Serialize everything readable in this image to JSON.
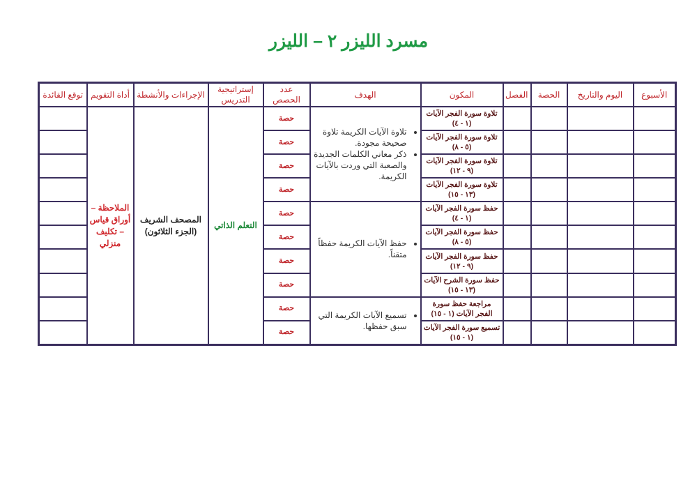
{
  "title": "مسرد الليزر ٢ – الليزر",
  "colors": {
    "title": "#1f9a45",
    "header_text": "#c0282d",
    "border": "#3b2f5e",
    "strategy": "#1f8a3a",
    "assessment": "#d0282d"
  },
  "headers": {
    "week": "الأسبوع",
    "day_date": "اليوم والتاريخ",
    "period": "الحصة",
    "class": "الفصل",
    "component": "المكون",
    "goal": "الهدف",
    "sessions_count": "عدد الحصص",
    "strategy": "إستراتيجية التدريس",
    "procedures": "الإجراءات والأنشطة",
    "assessment": "أداة التقويم",
    "expected_benefit": "توقع القائدة"
  },
  "components": [
    "تلاوة سورة الفجر الآيات (١ - ٤)",
    "تلاوة سورة الفجر الآيات (٥ - ٨)",
    "تلاوة سورة الفجر الآيات (٩ - ١٢)",
    "تلاوة سورة الفجر الآيات (١٣ - ١٥)",
    "حفظ سورة الفجر الآيات (١ - ٤)",
    "حفظ سورة الفجر الآيات (٥ - ٨)",
    "حفظ سورة الفجر الآيات (٩ - ١٢)",
    "حفظ سورة الشرح الآيات (١٣ - ١٥)",
    "مراجعة حفظ سورة الفجر الآيات (١ - ١٥)",
    "تسميع سورة الفجر الآيات (١ - ١٥)"
  ],
  "session_label": "حصة",
  "goals": [
    {
      "rows": 4,
      "items": [
        "تلاوة الآيات الكريمة تلاوة صحيحة مجودة.",
        "ذكر معاني الكلمات الجديدة والصعبة التي وردت بالآيات الكريمة."
      ]
    },
    {
      "rows": 4,
      "items": [
        "حفظ الآيات الكريمة حفظاً متقناً."
      ]
    },
    {
      "rows": 2,
      "items": [
        "تسميع الآيات الكريمة التي سبق حفظها."
      ]
    }
  ],
  "strategy": "التعلم الذاتي",
  "procedures": "المصحف الشريف (الجزء الثلاثون)",
  "assessment": "الملاحظة – أوراق قياس – تكليف منزلي"
}
